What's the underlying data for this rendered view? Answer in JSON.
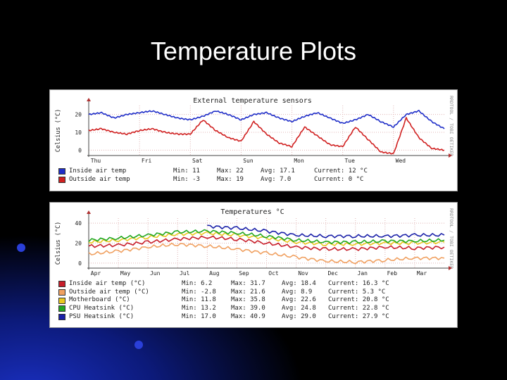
{
  "slide": {
    "title": "Temperature Plots"
  },
  "colors": {
    "panel_bg": "#ffffff",
    "grid": "#d8b8b8"
  },
  "chart_data": [
    {
      "type": "line",
      "title": "External temperature sensors",
      "ylabel": "Celsius (°C)",
      "side_label": "RRDTOOL / TOBI OETIKER",
      "ylim": [
        -3,
        25
      ],
      "yticks": [
        0,
        10,
        20
      ],
      "xrange": [
        0,
        7
      ],
      "xticks": [
        {
          "label": "Thu",
          "x": 0
        },
        {
          "label": "Fri",
          "x": 1
        },
        {
          "label": "Sat",
          "x": 2
        },
        {
          "label": "Sun",
          "x": 3
        },
        {
          "label": "Mon",
          "x": 4
        },
        {
          "label": "Tue",
          "x": 5
        },
        {
          "label": "Wed",
          "x": 6
        }
      ],
      "series": [
        {
          "name": "Inside air temp",
          "color": "#1f2ec8",
          "min": "11",
          "max": "22",
          "avg": "17.1",
          "current": "12 °C",
          "x": [
            0,
            0.25,
            0.5,
            0.75,
            1.0,
            1.25,
            1.5,
            1.75,
            2.0,
            2.25,
            2.5,
            2.75,
            3.0,
            3.25,
            3.5,
            3.75,
            4.0,
            4.25,
            4.5,
            4.75,
            5.0,
            5.25,
            5.5,
            5.75,
            6.0,
            6.25,
            6.5,
            6.75,
            7.0
          ],
          "values": [
            20,
            21,
            18,
            20,
            21,
            22,
            20,
            18,
            17,
            19,
            22,
            20,
            17,
            20,
            21,
            18,
            16,
            19,
            21,
            18,
            15,
            17,
            20,
            16,
            13,
            20,
            22,
            16,
            12
          ]
        },
        {
          "name": "Outside air temp",
          "color": "#d02020",
          "min": "-3",
          "max": "19",
          "avg": "7.0",
          "current": "0 °C",
          "x": [
            0,
            0.25,
            0.5,
            0.75,
            1.0,
            1.25,
            1.5,
            1.75,
            2.0,
            2.25,
            2.5,
            2.75,
            3.0,
            3.25,
            3.5,
            3.75,
            4.0,
            4.25,
            4.5,
            4.75,
            5.0,
            5.25,
            5.5,
            5.75,
            6.0,
            6.25,
            6.5,
            6.75,
            7.0
          ],
          "values": [
            11,
            12,
            10,
            9,
            11,
            12,
            10,
            9,
            9,
            17,
            11,
            7,
            5,
            16,
            9,
            4,
            2,
            13,
            8,
            3,
            2,
            13,
            6,
            -1,
            -2,
            18,
            7,
            1,
            0
          ]
        }
      ]
    },
    {
      "type": "line",
      "title": "Temperatures °C",
      "ylabel": "Celsius (°C)",
      "side_label": "RRDTOOL / TOBI OETIKER",
      "ylim": [
        -5,
        45
      ],
      "yticks": [
        0,
        20,
        40
      ],
      "xrange": [
        0,
        12
      ],
      "xticks": [
        {
          "label": "Apr",
          "x": 0
        },
        {
          "label": "May",
          "x": 1
        },
        {
          "label": "Jun",
          "x": 2
        },
        {
          "label": "Jul",
          "x": 3
        },
        {
          "label": "Aug",
          "x": 4
        },
        {
          "label": "Sep",
          "x": 5
        },
        {
          "label": "Oct",
          "x": 6
        },
        {
          "label": "Nov",
          "x": 7
        },
        {
          "label": "Dec",
          "x": 8
        },
        {
          "label": "Jan",
          "x": 9
        },
        {
          "label": "Feb",
          "x": 10
        },
        {
          "label": "Mar",
          "x": 11
        }
      ],
      "series": [
        {
          "name": "Inside air temp (°C)",
          "color": "#c81e2a",
          "min": "6.2",
          "max": "31.7",
          "avg": "18.4",
          "current": "16.3 °C",
          "x": [
            0,
            1,
            2,
            3,
            4,
            5,
            6,
            7,
            8,
            9,
            10,
            11,
            12
          ],
          "values": [
            17,
            18,
            21,
            24,
            26,
            24,
            20,
            16,
            14,
            14,
            16,
            15,
            16
          ]
        },
        {
          "name": "Outside air temp (°C)",
          "color": "#f0a060",
          "min": "-2.8",
          "max": "21.6",
          "avg": "8.9",
          "current": "5.3 °C",
          "x": [
            0,
            1,
            2,
            3,
            4,
            5,
            6,
            7,
            8,
            9,
            10,
            11,
            12
          ],
          "values": [
            9,
            12,
            16,
            19,
            17,
            14,
            10,
            6,
            2,
            1,
            3,
            5,
            5
          ]
        },
        {
          "name": "Motherboard (°C)",
          "color": "#e8c820",
          "min": "11.8",
          "max": "35.8",
          "avg": "22.6",
          "current": "20.8 °C",
          "x": [
            0,
            1,
            2,
            3,
            4,
            5,
            6,
            7,
            8,
            9,
            10,
            11,
            12
          ],
          "values": [
            21,
            23,
            26,
            29,
            30,
            28,
            25,
            21,
            19,
            19,
            20,
            20,
            21
          ]
        },
        {
          "name": "CPU Heatsink (°C)",
          "color": "#22a822",
          "min": "13.2",
          "max": "39.0",
          "avg": "24.8",
          "current": "22.8 °C",
          "x": [
            0,
            1,
            2,
            3,
            4,
            5,
            6,
            7,
            8,
            9,
            10,
            11,
            12
          ],
          "values": [
            23,
            25,
            28,
            31,
            32,
            30,
            27,
            23,
            21,
            21,
            22,
            22,
            23
          ]
        },
        {
          "name": "PSU Heatsink (°C)",
          "color": "#1a20a8",
          "min": "17.0",
          "max": "40.9",
          "avg": "29.0",
          "current": "27.9 °C",
          "x": [
            4,
            5,
            6,
            7,
            8,
            9,
            10,
            11,
            12
          ],
          "values": [
            37,
            35,
            32,
            28,
            27,
            27,
            27,
            28,
            28
          ]
        }
      ]
    }
  ]
}
